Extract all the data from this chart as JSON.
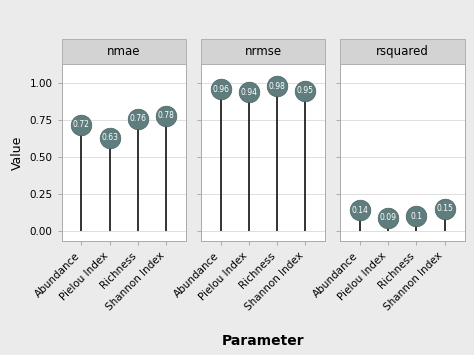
{
  "panels": [
    {
      "title": "nmae",
      "categories": [
        "Abundance",
        "Pielou Index",
        "Richness",
        "Shannon Index"
      ],
      "values": [
        0.72,
        0.63,
        0.76,
        0.78
      ]
    },
    {
      "title": "nrmse",
      "categories": [
        "Abundance",
        "Pielou Index",
        "Richness",
        "Shannon Index"
      ],
      "values": [
        0.96,
        0.94,
        0.98,
        0.95
      ]
    },
    {
      "title": "rsquared",
      "categories": [
        "Abundance",
        "Pielou Index",
        "Richness",
        "Shannon Index"
      ],
      "values": [
        0.14,
        0.09,
        0.1,
        0.15
      ]
    }
  ],
  "ylim": [
    -0.07,
    1.13
  ],
  "yticks": [
    0.0,
    0.25,
    0.5,
    0.75,
    1.0
  ],
  "ylabel": "Value",
  "xlabel": "Parameter",
  "circle_color": "#607d7d",
  "circle_edge_color": "#4a6060",
  "line_color": "#111111",
  "text_color": "white",
  "bg_color": "#ebebeb",
  "panel_bg": "#ffffff",
  "header_bg": "#d3d3d3",
  "header_border": "#b0b0b0",
  "grid_color": "#d9d9d9",
  "circle_size": 220,
  "font_size_label": 7.5,
  "font_size_title": 8.5,
  "font_size_value": 5.5,
  "font_size_ylabel": 9,
  "font_size_xlabel": 10
}
